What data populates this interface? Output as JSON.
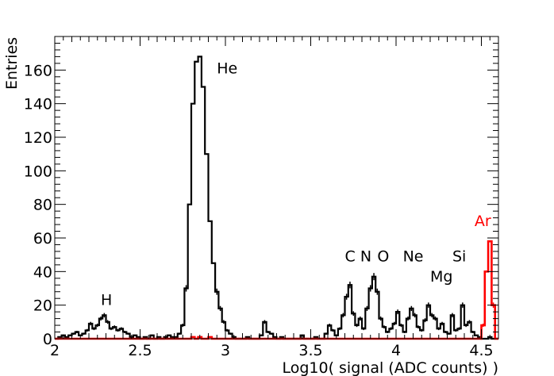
{
  "chart_data": {
    "type": "histogram",
    "title": "",
    "xlabel": "Log10( signal (ADC counts) )",
    "ylabel": "Entries",
    "xlim": [
      2.0,
      4.6
    ],
    "ylim": [
      0,
      180
    ],
    "x_ticks": [
      {
        "value": 2.0,
        "label": "2"
      },
      {
        "value": 2.5,
        "label": "2.5"
      },
      {
        "value": 3.0,
        "label": "3"
      },
      {
        "value": 3.5,
        "label": "3.5"
      },
      {
        "value": 4.0,
        "label": "4"
      },
      {
        "value": 4.5,
        "label": "4.5"
      }
    ],
    "y_ticks": [
      {
        "value": 0,
        "label": "0"
      },
      {
        "value": 20,
        "label": "20"
      },
      {
        "value": 40,
        "label": "40"
      },
      {
        "value": 60,
        "label": "60"
      },
      {
        "value": 80,
        "label": "80"
      },
      {
        "value": 100,
        "label": "100"
      },
      {
        "value": 120,
        "label": "120"
      },
      {
        "value": 140,
        "label": "140"
      },
      {
        "value": 160,
        "label": "160"
      }
    ],
    "grid": false,
    "series": [
      {
        "color": "#000000",
        "x": [
          2.0,
          2.02,
          2.04,
          2.06,
          2.08,
          2.1,
          2.12,
          2.14,
          2.16,
          2.18,
          2.2,
          2.22,
          2.24,
          2.26,
          2.28,
          2.3,
          2.32,
          2.34,
          2.36,
          2.38,
          2.4,
          2.42,
          2.44,
          2.46,
          2.48,
          2.5,
          2.52,
          2.54,
          2.56,
          2.58,
          2.6,
          2.62,
          2.64,
          2.66,
          2.68,
          2.7,
          2.72,
          2.74,
          2.76,
          2.78,
          2.8,
          2.82,
          2.84,
          2.86,
          2.88,
          2.9,
          2.92,
          2.94,
          2.96,
          2.98,
          3.0,
          3.02,
          3.04,
          3.06,
          3.08,
          3.1,
          3.12,
          3.14,
          3.16,
          3.18,
          3.2,
          3.22,
          3.24,
          3.26,
          3.28,
          3.3,
          3.32,
          3.34,
          3.36,
          3.38,
          3.4,
          3.42,
          3.44,
          3.46,
          3.48,
          3.5,
          3.52,
          3.54,
          3.56,
          3.58,
          3.6,
          3.62,
          3.64,
          3.66,
          3.68,
          3.7,
          3.72,
          3.74,
          3.76,
          3.78,
          3.8,
          3.82,
          3.84,
          3.86,
          3.88,
          3.9,
          3.92,
          3.94,
          3.96,
          3.98,
          4.0,
          4.02,
          4.04,
          4.06,
          4.08,
          4.1,
          4.12,
          4.14,
          4.16,
          4.18,
          4.2,
          4.22,
          4.24,
          4.26,
          4.28,
          4.3,
          4.32,
          4.34,
          4.36,
          4.38,
          4.4,
          4.42,
          4.44,
          4.46,
          4.48,
          4.5,
          4.52,
          4.54,
          4.56,
          4.58
        ],
        "y": [
          0,
          1,
          2,
          1,
          2,
          3,
          4,
          2,
          3,
          5,
          9,
          6,
          8,
          12,
          14,
          10,
          6,
          7,
          5,
          6,
          4,
          3,
          1,
          2,
          1,
          0,
          1,
          0,
          2,
          0,
          1,
          0,
          1,
          2,
          1,
          1,
          3,
          8,
          30,
          80,
          140,
          165,
          168,
          150,
          110,
          70,
          45,
          28,
          18,
          10,
          5,
          3,
          1,
          0,
          0,
          0,
          1,
          0,
          0,
          0,
          2,
          10,
          4,
          3,
          1,
          0,
          1,
          0,
          0,
          0,
          0,
          0,
          2,
          0,
          0,
          0,
          1,
          0,
          0,
          3,
          8,
          5,
          2,
          6,
          14,
          25,
          32,
          15,
          8,
          12,
          6,
          18,
          30,
          37,
          28,
          12,
          7,
          4,
          6,
          9,
          16,
          8,
          4,
          12,
          18,
          14,
          7,
          5,
          11,
          20,
          14,
          12,
          6,
          9,
          4,
          3,
          14,
          5,
          6,
          20,
          8,
          10,
          4,
          2,
          1,
          0,
          0,
          1,
          0,
          0
        ]
      },
      {
        "color": "#ff0000",
        "x": [
          2.0,
          2.02,
          2.04,
          2.06,
          2.08,
          2.1,
          2.12,
          2.14,
          2.16,
          2.18,
          2.2,
          2.22,
          2.24,
          2.26,
          2.28,
          2.3,
          2.32,
          2.34,
          2.36,
          2.38,
          2.4,
          2.42,
          2.44,
          2.46,
          2.48,
          2.5,
          2.52,
          2.54,
          2.56,
          2.58,
          2.6,
          2.62,
          2.64,
          2.66,
          2.68,
          2.7,
          2.72,
          2.74,
          2.76,
          2.78,
          2.8,
          2.82,
          2.84,
          2.86,
          2.88,
          2.9,
          2.92,
          2.94,
          2.96,
          2.98,
          3.0,
          3.02,
          3.04,
          3.06,
          3.08,
          3.1,
          3.12,
          3.14,
          3.16,
          3.18,
          3.2,
          3.22,
          3.24,
          3.26,
          3.28,
          3.3,
          3.32,
          3.34,
          3.36,
          3.38,
          3.4,
          3.42,
          3.44,
          3.46,
          3.48,
          3.5,
          3.52,
          3.54,
          3.56,
          3.58,
          3.6,
          3.62,
          3.64,
          3.66,
          3.68,
          3.7,
          3.72,
          3.74,
          3.76,
          3.78,
          3.8,
          3.82,
          3.84,
          3.86,
          3.88,
          3.9,
          3.92,
          3.94,
          3.96,
          3.98,
          4.0,
          4.02,
          4.04,
          4.06,
          4.08,
          4.1,
          4.12,
          4.14,
          4.16,
          4.18,
          4.2,
          4.22,
          4.24,
          4.26,
          4.28,
          4.3,
          4.32,
          4.34,
          4.36,
          4.38,
          4.4,
          4.42,
          4.44,
          4.46,
          4.48,
          4.5,
          4.52,
          4.54,
          4.56,
          4.58
        ],
        "y": [
          0,
          0,
          0,
          0,
          0,
          0,
          0,
          0,
          0,
          0,
          0,
          0,
          0,
          0,
          0,
          0,
          0,
          0,
          0,
          0,
          0,
          0,
          0,
          0,
          0,
          0,
          0,
          0,
          0,
          0,
          0,
          0,
          0,
          0,
          0,
          0,
          0,
          0,
          0,
          0,
          1,
          0,
          1,
          0,
          0,
          1,
          0,
          0,
          0,
          0,
          0,
          0,
          0,
          0,
          0,
          0,
          0,
          0,
          0,
          0,
          0,
          0,
          0,
          0,
          0,
          0,
          0,
          0,
          0,
          0,
          0,
          0,
          0,
          0,
          0,
          0,
          0,
          0,
          0,
          0,
          0,
          0,
          0,
          0,
          0,
          0,
          0,
          0,
          0,
          0,
          0,
          0,
          0,
          0,
          0,
          0,
          0,
          0,
          0,
          0,
          0,
          0,
          0,
          0,
          0,
          0,
          0,
          0,
          0,
          0,
          0,
          0,
          0,
          0,
          0,
          0,
          0,
          0,
          0,
          0,
          0,
          0,
          0,
          0,
          0,
          8,
          40,
          58,
          20,
          0
        ]
      }
    ],
    "annotations": [
      {
        "text": "H",
        "x": 2.27,
        "y": 20,
        "color": "#000000"
      },
      {
        "text": "He",
        "x": 2.95,
        "y": 158,
        "color": "#000000"
      },
      {
        "text": "C",
        "x": 3.7,
        "y": 46,
        "color": "#000000"
      },
      {
        "text": "N",
        "x": 3.79,
        "y": 46,
        "color": "#000000"
      },
      {
        "text": "O",
        "x": 3.89,
        "y": 46,
        "color": "#000000"
      },
      {
        "text": "Ne",
        "x": 4.04,
        "y": 46,
        "color": "#000000"
      },
      {
        "text": "Mg",
        "x": 4.2,
        "y": 34,
        "color": "#000000"
      },
      {
        "text": "Si",
        "x": 4.33,
        "y": 46,
        "color": "#000000"
      },
      {
        "text": "Ar",
        "x": 4.46,
        "y": 67,
        "color": "#ff0000"
      }
    ]
  }
}
